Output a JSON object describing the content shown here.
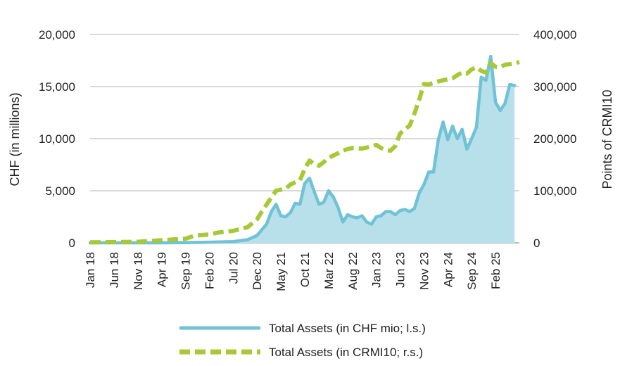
{
  "chart_data": {
    "type": "area",
    "x_tick_labels": [
      "Jan 18",
      "Jun 18",
      "Nov 18",
      "Apr 19",
      "Sep 19",
      "Feb 20",
      "Jul 20",
      "Dec 20",
      "May 21",
      "Oct 21",
      "Mar 22",
      "Aug 22",
      "Jan 23",
      "Jun 23",
      "Nov 23",
      "Apr 24",
      "Sep 24",
      "Feb 25"
    ],
    "x_start": "Jan 18",
    "x_end": "Jul 25",
    "ylabel_left": "CHF (in millions)",
    "ylabel_right": "Points of CRMI10",
    "ylim_left": [
      0,
      20000
    ],
    "ylim_right": [
      0,
      400000
    ],
    "yticks_left": [
      "0",
      "5,000",
      "10,000",
      "15,000",
      "20,000"
    ],
    "yticks_right": [
      "0",
      "100,000",
      "200,000",
      "300,000",
      "400,000"
    ],
    "grid": "horizontal",
    "legend_position": "bottom",
    "series": [
      {
        "name": "Total Assets (in CHF mio; l.s.)",
        "axis": "left",
        "style": "solid line with filled area",
        "color": "#70C2D6",
        "fill": "#B7E0EA",
        "points": [
          [
            "Jan 18",
            0
          ],
          [
            "Jun 18",
            0
          ],
          [
            "Nov 18",
            0
          ],
          [
            "Apr 19",
            0
          ],
          [
            "Sep 19",
            20
          ],
          [
            "Feb 20",
            60
          ],
          [
            "Jul 20",
            120
          ],
          [
            "Oct 20",
            300
          ],
          [
            "Dec 20",
            700
          ],
          [
            "Feb 21",
            1800
          ],
          [
            "Mar 21",
            3000
          ],
          [
            "Apr 21",
            3700
          ],
          [
            "May 21",
            2600
          ],
          [
            "Jun 21",
            2500
          ],
          [
            "Jul 21",
            2900
          ],
          [
            "Aug 21",
            3800
          ],
          [
            "Sep 21",
            3700
          ],
          [
            "Oct 21",
            5700
          ],
          [
            "Nov 21",
            6200
          ],
          [
            "Dec 21",
            4900
          ],
          [
            "Jan 22",
            3700
          ],
          [
            "Feb 22",
            3900
          ],
          [
            "Mar 22",
            5000
          ],
          [
            "Apr 22",
            4400
          ],
          [
            "May 22",
            3400
          ],
          [
            "Jun 22",
            2000
          ],
          [
            "Jul 22",
            2700
          ],
          [
            "Aug 22",
            2500
          ],
          [
            "Sep 22",
            2400
          ],
          [
            "Oct 22",
            2600
          ],
          [
            "Nov 22",
            2000
          ],
          [
            "Dec 22",
            1800
          ],
          [
            "Jan 23",
            2500
          ],
          [
            "Feb 23",
            2600
          ],
          [
            "Mar 23",
            3000
          ],
          [
            "Apr 23",
            3000
          ],
          [
            "May 23",
            2700
          ],
          [
            "Jun 23",
            3100
          ],
          [
            "Jul 23",
            3200
          ],
          [
            "Aug 23",
            3000
          ],
          [
            "Sep 23",
            3300
          ],
          [
            "Oct 23",
            4800
          ],
          [
            "Nov 23",
            5600
          ],
          [
            "Dec 23",
            6800
          ],
          [
            "Jan 24",
            6800
          ],
          [
            "Feb 24",
            9900
          ],
          [
            "Mar 24",
            11600
          ],
          [
            "Apr 24",
            9900
          ],
          [
            "May 24",
            11200
          ],
          [
            "Jun 24",
            10000
          ],
          [
            "Jul 24",
            10900
          ],
          [
            "Aug 24",
            9000
          ],
          [
            "Sep 24",
            10000
          ],
          [
            "Oct 24",
            11100
          ],
          [
            "Nov 24",
            15900
          ],
          [
            "Dec 24",
            15600
          ],
          [
            "Jan 25",
            17900
          ],
          [
            "Feb 25",
            13500
          ],
          [
            "Mar 25",
            12700
          ],
          [
            "Apr 25",
            13400
          ],
          [
            "May 25",
            15200
          ],
          [
            "Jun 25",
            15100
          ]
        ]
      },
      {
        "name": "Total Assets (in CRMI10; r.s.)",
        "axis": "right",
        "style": "dashed line",
        "color": "#A6C935",
        "points": [
          [
            "Jan 18",
            1000
          ],
          [
            "Jun 18",
            1500
          ],
          [
            "Nov 18",
            2000
          ],
          [
            "Apr 19",
            5000
          ],
          [
            "Sep 19",
            8000
          ],
          [
            "Nov 19",
            14000
          ],
          [
            "Feb 20",
            16000
          ],
          [
            "Apr 20",
            20000
          ],
          [
            "Jul 20",
            23000
          ],
          [
            "Oct 20",
            30000
          ],
          [
            "Dec 20",
            45000
          ],
          [
            "Jan 21",
            60000
          ],
          [
            "Mar 21",
            87000
          ],
          [
            "Apr 21",
            100000
          ],
          [
            "Jun 21",
            104000
          ],
          [
            "Jul 21",
            112000
          ],
          [
            "Sep 21",
            120000
          ],
          [
            "Oct 21",
            142000
          ],
          [
            "Nov 21",
            158000
          ],
          [
            "Dec 21",
            151000
          ],
          [
            "Jan 22",
            148000
          ],
          [
            "Feb 22",
            155000
          ],
          [
            "Mar 22",
            163000
          ],
          [
            "May 22",
            172000
          ],
          [
            "Jun 22",
            177000
          ],
          [
            "Jul 22",
            180000
          ],
          [
            "Aug 22",
            182000
          ],
          [
            "Oct 22",
            181000
          ],
          [
            "Nov 22",
            183000
          ],
          [
            "Jan 23",
            188000
          ],
          [
            "Feb 23",
            182000
          ],
          [
            "Mar 23",
            178000
          ],
          [
            "Apr 23",
            177000
          ],
          [
            "May 23",
            186000
          ],
          [
            "Jun 23",
            210000
          ],
          [
            "Jul 23",
            218000
          ],
          [
            "Aug 23",
            225000
          ],
          [
            "Sep 23",
            248000
          ],
          [
            "Oct 23",
            275000
          ],
          [
            "Nov 23",
            305000
          ],
          [
            "Dec 23",
            304000
          ],
          [
            "Jan 24",
            307000
          ],
          [
            "Feb 24",
            310000
          ],
          [
            "Apr 24",
            314000
          ],
          [
            "May 24",
            316000
          ],
          [
            "Jun 24",
            322000
          ],
          [
            "Jul 24",
            327000
          ],
          [
            "Aug 24",
            325000
          ],
          [
            "Sep 24",
            333000
          ],
          [
            "Oct 24",
            337000
          ],
          [
            "Nov 24",
            330000
          ],
          [
            "Dec 24",
            327000
          ],
          [
            "Jan 25",
            345000
          ],
          [
            "Feb 25",
            338000
          ],
          [
            "Mar 25",
            337000
          ],
          [
            "Apr 25",
            342000
          ],
          [
            "May 25",
            343000
          ],
          [
            "Jun 25",
            345000
          ],
          [
            "Jul 25",
            347000
          ]
        ]
      }
    ]
  }
}
